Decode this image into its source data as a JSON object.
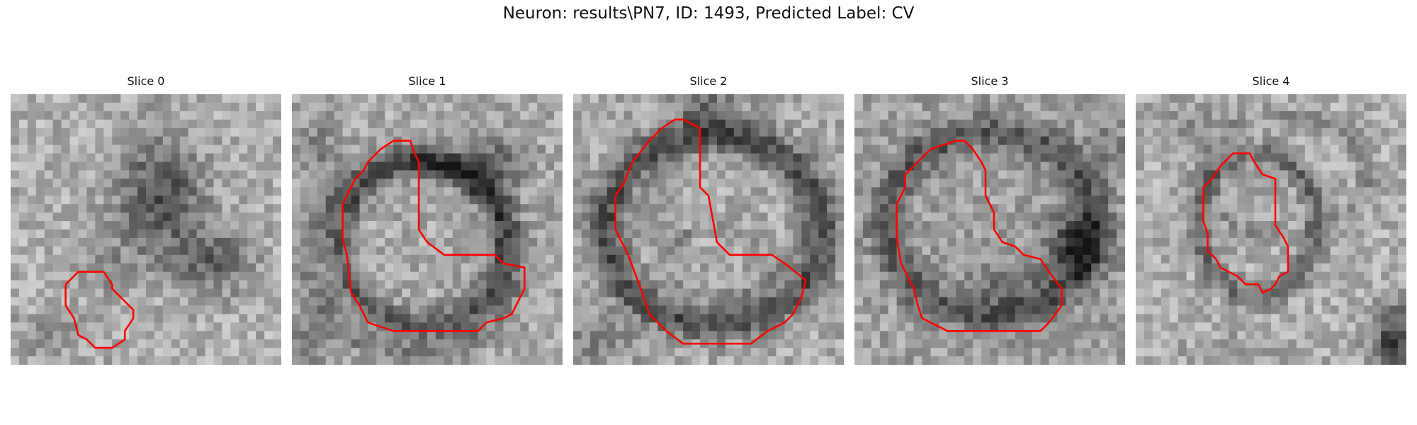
{
  "figure": {
    "title": "Neuron: results\\PN7, ID: 1493, Predicted Label: CV"
  },
  "slices": [
    {
      "title": "Slice 0"
    },
    {
      "title": "Slice 1"
    },
    {
      "title": "Slice 2"
    },
    {
      "title": "Slice 3"
    },
    {
      "title": "Slice 4"
    }
  ],
  "colors": {
    "contour": "#ff0000",
    "background": "#ffffff"
  }
}
